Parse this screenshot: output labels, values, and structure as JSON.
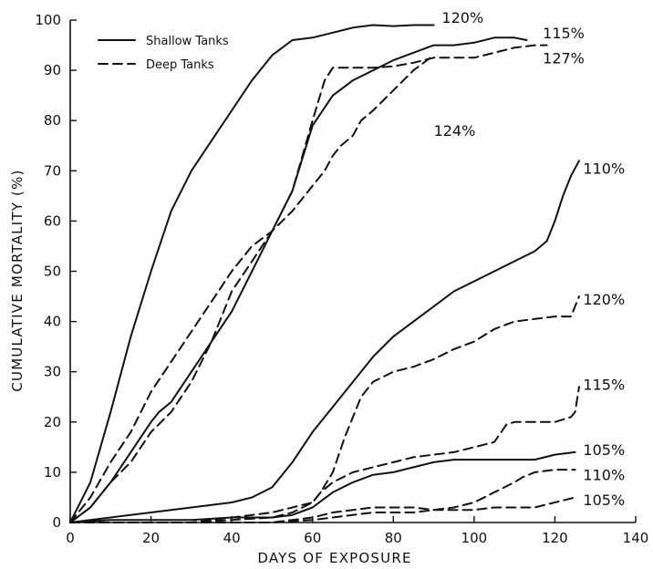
{
  "chart_data": {
    "type": "line",
    "title": "",
    "xlabel": "DAYS OF EXPOSURE",
    "ylabel": "CUMULATIVE MORTALITY (%)",
    "xlim": [
      0,
      140
    ],
    "ylim": [
      0,
      100
    ],
    "xticks": [
      0,
      20,
      40,
      60,
      80,
      100,
      120,
      140
    ],
    "yticks": [
      0,
      10,
      20,
      30,
      40,
      50,
      60,
      70,
      80,
      90,
      100
    ],
    "grid": false,
    "legend": {
      "placement": "top-left",
      "entries": [
        {
          "label": "Shallow Tanks",
          "style": "solid"
        },
        {
          "label": "Deep Tanks",
          "style": "dashed"
        }
      ]
    },
    "series": [
      {
        "label": "120%",
        "style": "solid",
        "label_pos": [
          92,
          100.5
        ],
        "x": [
          0,
          5,
          10,
          15,
          20,
          25,
          30,
          35,
          40,
          45,
          50,
          55,
          60,
          65,
          70,
          75,
          80,
          85,
          90
        ],
        "y": [
          0,
          8,
          22,
          37,
          50,
          62,
          70,
          76,
          82,
          88,
          93,
          96,
          96.5,
          97.5,
          98.5,
          99,
          98.8,
          99,
          99
        ]
      },
      {
        "label": "115%",
        "style": "solid",
        "label_pos": [
          117,
          97.5
        ],
        "x": [
          0,
          5,
          10,
          15,
          20,
          22,
          25,
          30,
          35,
          40,
          45,
          50,
          55,
          60,
          65,
          70,
          75,
          80,
          85,
          90,
          95,
          100,
          105,
          110,
          113
        ],
        "y": [
          0,
          3,
          8,
          14,
          20,
          22,
          24,
          30,
          36,
          42,
          50,
          58,
          66,
          79,
          85,
          88,
          90,
          92,
          93.5,
          95,
          95,
          95.5,
          96.5,
          96.5,
          96
        ]
      },
      {
        "label": "127%",
        "style": "dashed",
        "label_pos": [
          117,
          92.5
        ],
        "x": [
          0,
          5,
          10,
          15,
          20,
          25,
          30,
          35,
          40,
          45,
          50,
          55,
          60,
          63,
          65,
          70,
          75,
          80,
          85,
          90,
          95,
          100,
          105,
          110,
          115,
          118
        ],
        "y": [
          0,
          3,
          8,
          12,
          18,
          22,
          28,
          36,
          46,
          52,
          58,
          66,
          80,
          88,
          90.5,
          90.5,
          90.5,
          90.8,
          91.5,
          92.5,
          92.5,
          92.5,
          93.5,
          94.5,
          95,
          95
        ]
      },
      {
        "label": "124%",
        "style": "dashed",
        "label_pos": [
          90,
          78
        ],
        "x": [
          0,
          5,
          10,
          15,
          20,
          25,
          30,
          35,
          40,
          45,
          50,
          55,
          60,
          63,
          65,
          67,
          70,
          72,
          75,
          80,
          85,
          90
        ],
        "y": [
          0,
          5,
          12,
          18,
          26,
          32,
          38,
          44,
          50,
          55,
          58,
          62,
          67,
          70,
          73,
          75,
          77,
          80,
          82,
          86,
          90,
          93
        ]
      },
      {
        "label": "110%",
        "style": "solid",
        "label_pos": [
          127,
          70.5
        ],
        "x": [
          0,
          10,
          20,
          30,
          40,
          45,
          50,
          55,
          60,
          65,
          70,
          75,
          80,
          85,
          90,
          95,
          100,
          105,
          110,
          115,
          118,
          120,
          122,
          124,
          126
        ],
        "y": [
          0,
          1,
          2,
          3,
          4,
          5,
          7,
          12,
          18,
          23,
          28,
          33,
          37,
          40,
          43,
          46,
          48,
          50,
          52,
          54,
          56,
          60,
          65,
          69,
          72
        ]
      },
      {
        "label": "120%",
        "style": "dashed",
        "label_pos": [
          127,
          44.5
        ],
        "x": [
          0,
          10,
          20,
          30,
          40,
          50,
          55,
          60,
          62,
          65,
          68,
          70,
          72,
          75,
          80,
          85,
          90,
          95,
          100,
          105,
          110,
          115,
          120,
          124,
          126
        ],
        "y": [
          0,
          0,
          0,
          0,
          0.5,
          1,
          2,
          4,
          6,
          10,
          17,
          21,
          25,
          28,
          30,
          31,
          32.5,
          34.5,
          36,
          38.5,
          40,
          40.5,
          41,
          41,
          45
        ]
      },
      {
        "label": "115%",
        "style": "dashed",
        "label_pos": [
          127,
          27.5
        ],
        "x": [
          0,
          10,
          20,
          30,
          40,
          50,
          60,
          62,
          65,
          70,
          75,
          80,
          85,
          90,
          95,
          100,
          105,
          108,
          110,
          115,
          120,
          124,
          125,
          126
        ],
        "y": [
          0,
          0,
          0,
          0,
          1,
          2,
          4,
          6,
          8,
          10,
          11,
          12,
          13,
          13.5,
          14,
          15,
          16,
          19.5,
          20,
          20,
          20,
          21,
          22,
          27
        ]
      },
      {
        "label": "105%",
        "style": "solid",
        "label_pos": [
          127,
          14.5
        ],
        "x": [
          0,
          10,
          20,
          30,
          40,
          50,
          55,
          60,
          65,
          70,
          75,
          80,
          85,
          90,
          95,
          100,
          105,
          110,
          115,
          120,
          125
        ],
        "y": [
          0,
          0.5,
          0.5,
          0.5,
          1,
          1,
          1.5,
          3,
          6,
          8,
          9.5,
          10,
          11,
          12,
          12.5,
          12.5,
          12.5,
          12.5,
          12.5,
          13.5,
          14
        ]
      },
      {
        "label": "110%",
        "style": "dashed",
        "label_pos": [
          127,
          9.5
        ],
        "x": [
          0,
          10,
          20,
          30,
          40,
          50,
          60,
          65,
          70,
          75,
          80,
          85,
          90,
          95,
          100,
          105,
          110,
          112,
          115,
          120,
          125
        ],
        "y": [
          0,
          0,
          0,
          0,
          0,
          0,
          0.5,
          1,
          1.5,
          2,
          2,
          2,
          2.5,
          3,
          4,
          6,
          8,
          9,
          10,
          10.5,
          10.5
        ]
      },
      {
        "label": "105%",
        "style": "dashed",
        "label_pos": [
          127,
          4.5
        ],
        "x": [
          0,
          10,
          20,
          30,
          40,
          50,
          55,
          60,
          65,
          70,
          75,
          80,
          85,
          90,
          95,
          100,
          105,
          110,
          115,
          120,
          125
        ],
        "y": [
          0,
          0,
          0,
          0,
          0,
          0,
          0.5,
          1,
          2,
          2.5,
          3,
          3,
          3,
          2.5,
          2.5,
          2.5,
          3,
          3,
          3,
          4,
          5
        ]
      }
    ]
  }
}
